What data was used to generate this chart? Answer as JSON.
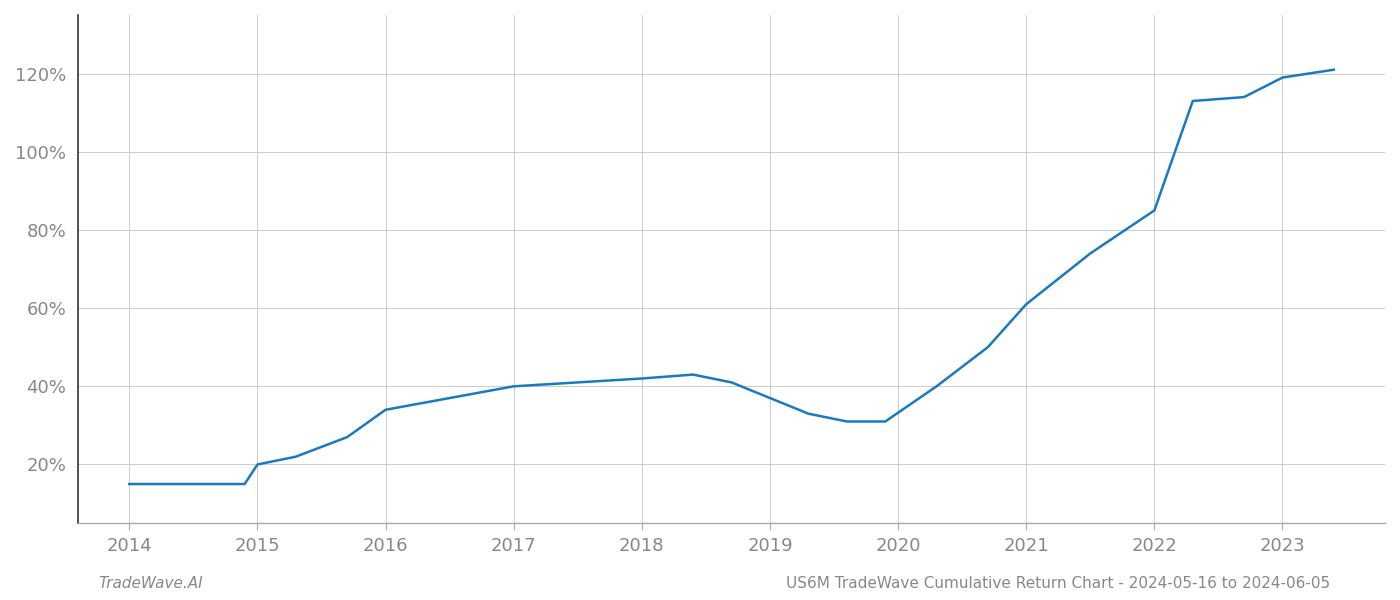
{
  "x_years": [
    2014.0,
    2014.9,
    2015.0,
    2015.3,
    2015.7,
    2016.0,
    2016.5,
    2017.0,
    2017.5,
    2018.0,
    2018.4,
    2018.7,
    2019.0,
    2019.3,
    2019.6,
    2019.9,
    2020.3,
    2020.7,
    2021.0,
    2021.5,
    2022.0,
    2022.3,
    2022.7,
    2023.0,
    2023.4
  ],
  "y_values": [
    15,
    15,
    20,
    22,
    27,
    34,
    37,
    40,
    41,
    42,
    43,
    41,
    37,
    33,
    31,
    31,
    40,
    50,
    61,
    74,
    85,
    113,
    114,
    119,
    121
  ],
  "line_color": "#1a7abf",
  "line_width": 1.8,
  "xlabel": "",
  "ylabel": "",
  "x_ticks": [
    2014,
    2015,
    2016,
    2017,
    2018,
    2019,
    2020,
    2021,
    2022,
    2023
  ],
  "x_tick_labels": [
    "2014",
    "2015",
    "2016",
    "2017",
    "2018",
    "2019",
    "2020",
    "2021",
    "2022",
    "2023"
  ],
  "y_ticks": [
    20,
    40,
    60,
    80,
    100,
    120
  ],
  "y_tick_labels": [
    "20%",
    "40%",
    "60%",
    "80%",
    "100%",
    "120%"
  ],
  "ylim": [
    5,
    135
  ],
  "xlim": [
    2013.6,
    2023.8
  ],
  "grid_color": "#cccccc",
  "grid_linestyle": "-",
  "grid_linewidth": 0.7,
  "background_color": "#ffffff",
  "footer_left": "TradeWave.AI",
  "footer_right": "US6M TradeWave Cumulative Return Chart - 2024-05-16 to 2024-06-05",
  "tick_label_color": "#888888",
  "tick_label_fontsize": 13,
  "footer_fontsize": 11,
  "left_spine_color": "#333333",
  "bottom_spine_color": "#aaaaaa"
}
